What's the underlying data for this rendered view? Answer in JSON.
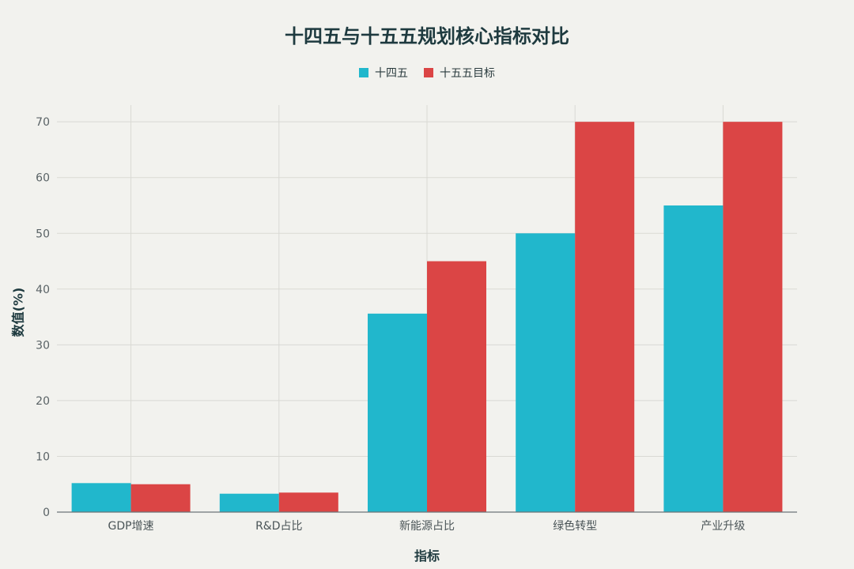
{
  "chart_data": {
    "type": "bar",
    "title": "十四五与十五五规划核心指标对比",
    "xlabel": "指标",
    "ylabel": "数值(%)",
    "categories": [
      "GDP增速",
      "R&D占比",
      "新能源占比",
      "绿色转型",
      "产业升级"
    ],
    "series": [
      {
        "name": "十四五",
        "values": [
          5.2,
          3.3,
          35.6,
          50,
          55
        ],
        "color": "#21b7cc"
      },
      {
        "name": "十五五目标",
        "values": [
          5,
          3.5,
          45,
          70,
          70
        ],
        "color": "#db4545"
      }
    ],
    "ylim": [
      0,
      73
    ],
    "yticks": [
      0,
      10,
      20,
      30,
      40,
      50,
      60,
      70
    ],
    "grid": true,
    "legend_position": "top-center"
  }
}
